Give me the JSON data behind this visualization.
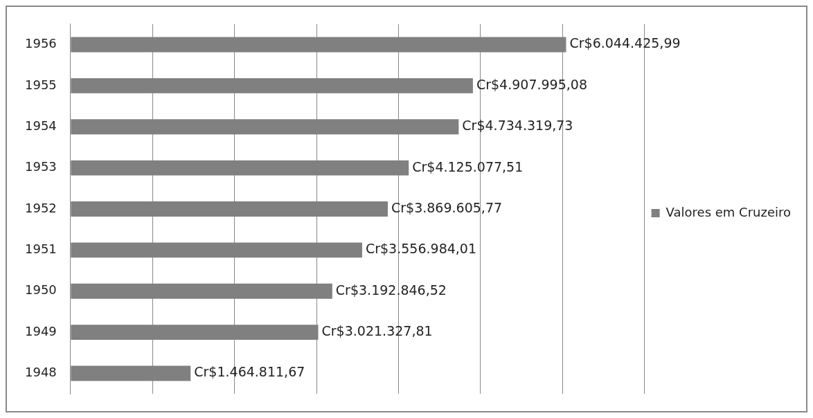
{
  "chart_data": {
    "type": "bar",
    "orientation": "horizontal",
    "categories": [
      "1956",
      "1955",
      "1954",
      "1953",
      "1952",
      "1951",
      "1950",
      "1949",
      "1948"
    ],
    "series": [
      {
        "name": "Valores em Cruzeiro",
        "color": "#808080",
        "values": [
          6044425.99,
          4907995.08,
          4734319.73,
          4125077.51,
          3869605.77,
          3556984.01,
          3192846.52,
          3021327.81,
          1464811.67
        ],
        "value_labels": [
          "Cr$6.044.425,99",
          "Cr$4.907.995,08",
          "Cr$4.734.319,73",
          "Cr$4.125.077,51",
          "Cr$3.869.605,77",
          "Cr$3.556.984,01",
          "Cr$3.192.846,52",
          "Cr$3.021.327,81",
          "Cr$1.464.811,67"
        ]
      }
    ],
    "xlim": [
      0,
      7000000
    ],
    "xticks": [
      {
        "value": 0,
        "label": null
      },
      {
        "value": 1000000,
        "label": null
      },
      {
        "value": 2000000,
        "label": null
      },
      {
        "value": 3000000,
        "label": null
      },
      {
        "value": 4000000,
        "label": null
      },
      {
        "value": 5000000,
        "label": null
      },
      {
        "value": 6000000,
        "label": null
      },
      {
        "value": 7000000,
        "label": null
      }
    ],
    "tick_labels": "y",
    "grid": "x",
    "legend": "right"
  }
}
